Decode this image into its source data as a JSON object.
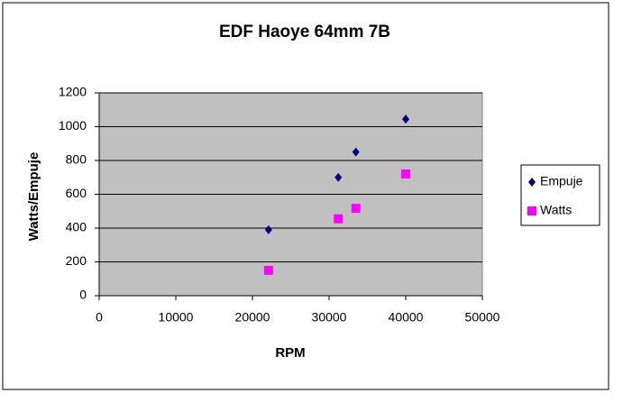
{
  "chart_data": {
    "type": "scatter",
    "title": "EDF Haoye 64mm 7B",
    "x_label": "RPM",
    "y_label": "Watts/Empuje",
    "xlim": [
      0,
      50000
    ],
    "xticks": [
      0,
      10000,
      20000,
      30000,
      40000,
      50000
    ],
    "ylim": [
      0,
      1200
    ],
    "yticks": [
      0,
      200,
      400,
      600,
      800,
      1000,
      1200
    ],
    "grid": true,
    "legend": "right",
    "series": [
      {
        "name": "Empuje",
        "color": "#000080",
        "marker": "diamond",
        "x": [
          22100,
          31200,
          33500,
          40000
        ],
        "values": [
          390,
          700,
          850,
          1045
        ]
      },
      {
        "name": "Watts",
        "color": "#ff00ff",
        "marker": "square",
        "x": [
          22100,
          31200,
          33500,
          40000
        ],
        "values": [
          150,
          455,
          517,
          720
        ]
      }
    ]
  }
}
